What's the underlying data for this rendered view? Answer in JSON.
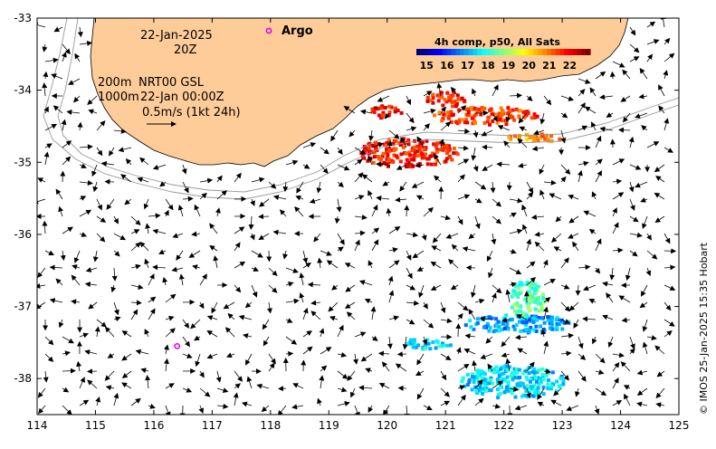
{
  "map": {
    "lon_range": [
      114,
      125
    ],
    "lat_range": [
      -38.5,
      -33
    ],
    "x_ticks": [
      "114",
      "115",
      "116",
      "117",
      "118",
      "119",
      "120",
      "121",
      "122",
      "123",
      "124",
      "125"
    ],
    "y_ticks": [
      "-33",
      "-34",
      "-35",
      "-36",
      "-37",
      "-38"
    ],
    "land_color": "#FDCC99",
    "ocean_color": "#FFFFFF"
  },
  "header": {
    "date": "22-Jan-2025",
    "time": "20Z"
  },
  "argo": {
    "label": "Argo",
    "marker_color": "#E600E6",
    "float_position": {
      "lon": 116.4,
      "lat": -37.55
    }
  },
  "info": {
    "depth_200": "200m",
    "depth_1000": "1000m",
    "product": "NRT00 GSL",
    "datetime": "22-Jan 00:00Z",
    "scale": "0.5m/s (1kt 24h)"
  },
  "colorbar": {
    "title": "4h comp, p50, All Sats",
    "ticks": [
      "15",
      "16",
      "17",
      "18",
      "19",
      "20",
      "21",
      "22"
    ],
    "range": [
      14.5,
      23
    ],
    "colors": [
      "#00007F",
      "#0000FF",
      "#0080FF",
      "#00FFFF",
      "#80FF80",
      "#FFFF00",
      "#FF8000",
      "#FF0000",
      "#7F0000"
    ]
  },
  "credit": "© IMOS 25-Jan-2025 15:35 Hobart"
}
